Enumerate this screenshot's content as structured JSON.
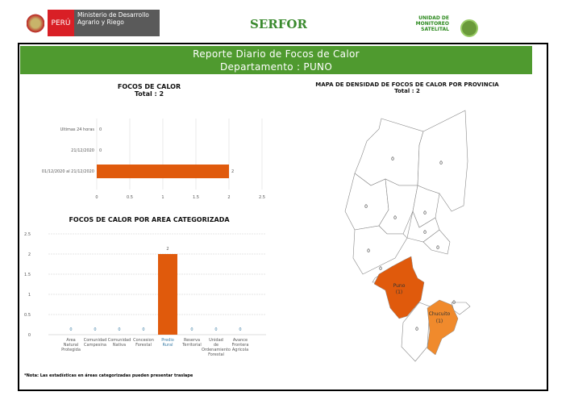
{
  "header": {
    "peru": "PERÚ",
    "ministry": "Ministerio de Desarrollo Agrario y Riego",
    "serfor": "SERFOR",
    "unit": "UNIDAD DE MONITOREO SATELITAL"
  },
  "report": {
    "title": "Reporte Diario de Focos de Calor",
    "department": "Departamento : PUNO"
  },
  "chart_data": [
    {
      "type": "bar",
      "orientation": "horizontal",
      "title": "FOCOS DE CALOR",
      "subtitle": "Total : 2",
      "categories": [
        "Ultimas 24 horas",
        "21/12/2020",
        "01/12/2020 al 21/12/2020"
      ],
      "values": [
        0,
        0,
        2
      ],
      "xlim": [
        0,
        2.5
      ],
      "ticks": [
        "0",
        "0.5",
        "1",
        "1.5",
        "2",
        "2.5"
      ],
      "color": "#e05a0c"
    },
    {
      "type": "bar",
      "title": "FOCOS DE CALOR POR AREA CATEGORIZADA",
      "categories": [
        "Area Natural Protegida",
        "Comunidad Campesina",
        "Comunidad Nativa",
        "Concesion Forestal",
        "Predio Rural",
        "Reserva Territorial",
        "Unidad de Ordenamiento Forestal",
        "Avance Frontera Agricola"
      ],
      "values": [
        0,
        0,
        0,
        0,
        2,
        0,
        0,
        0
      ],
      "ylim": [
        0,
        2.5
      ],
      "ticks": [
        "0",
        "0.5",
        "1",
        "1.5",
        "2",
        "2.5"
      ],
      "color": "#e05a0c"
    }
  ],
  "map": {
    "title": "MAPA DE DENSIDAD DE FOCOS DE CALOR POR PROVINCIA",
    "subtitle": "Total : 2",
    "provinces": [
      {
        "name": "Puno",
        "count": "(1)",
        "color": "#e05a0c"
      },
      {
        "name": "Chucuito",
        "count": "(1)",
        "color": "#f08a2c"
      }
    ],
    "zero_label": "0"
  },
  "note": "*Nota: Las estadísticas en áreas categorizadas pueden presentar traslape"
}
